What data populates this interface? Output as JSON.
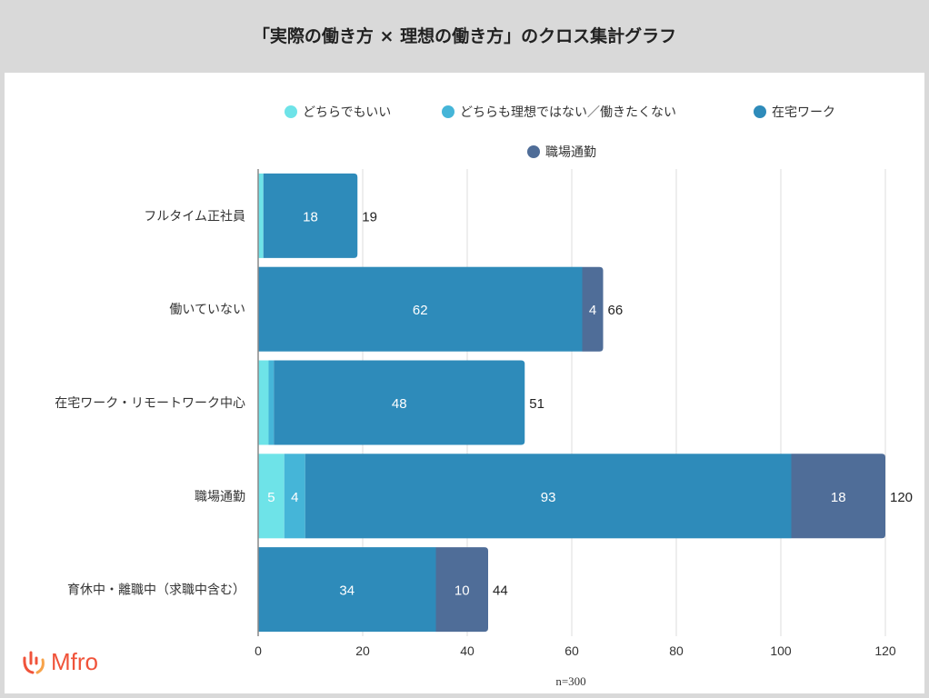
{
  "chart_data": {
    "type": "bar",
    "orientation": "horizontal",
    "stacked": true,
    "title": "「実際の働き方 × 理想の働き方」のクロス集計グラフ",
    "categories": [
      "フルタイム正社員",
      "働いていない",
      "在宅ワーク・リモートワーク中心",
      "職場通勤",
      "育休中・離職中（求職中含む）"
    ],
    "series": [
      {
        "name": "どちらでもいい",
        "color": "#6ee3e8",
        "values": [
          1,
          0,
          2,
          5,
          0
        ]
      },
      {
        "name": "どちらも理想ではない／働きたくない",
        "color": "#45b5d8",
        "values": [
          0,
          0,
          1,
          4,
          0
        ]
      },
      {
        "name": "在宅ワーク",
        "color": "#2e8bba",
        "values": [
          18,
          62,
          48,
          93,
          34
        ]
      },
      {
        "name": "職場通勤",
        "color": "#4f6d98",
        "values": [
          0,
          4,
          0,
          18,
          10
        ]
      }
    ],
    "totals": [
      19,
      66,
      51,
      120,
      44
    ],
    "xlim": [
      0,
      120
    ],
    "xticks": [
      0,
      20,
      40,
      60,
      80,
      100,
      120
    ],
    "grid": true,
    "legend": "top",
    "note": "n=300",
    "label_min": 4
  },
  "logo": {
    "text": "Mfro"
  }
}
